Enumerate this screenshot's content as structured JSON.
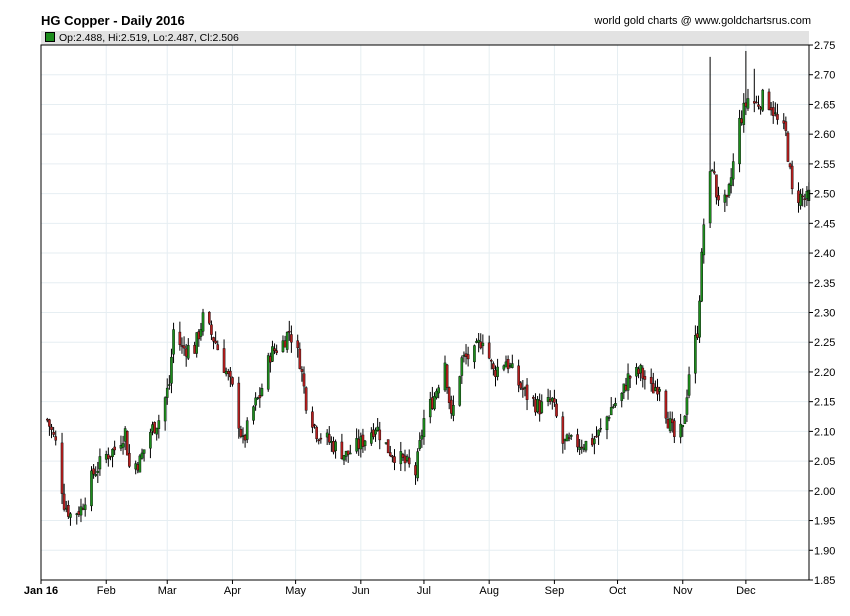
{
  "title": "HG Copper - Daily 2016",
  "credit": "world gold charts @ www.goldchartsrus.com",
  "legend": "Op:2.488, Hi:2.519, Lo:2.487, Cl:2.506",
  "colors": {
    "up": "#1c8c1c",
    "down": "#b41e1e",
    "grid": "#e6eef2",
    "wick": "#000000"
  },
  "chart_data": {
    "type": "candlestick",
    "title": "HG Copper - Daily 2016",
    "xlabel": "",
    "ylabel": "",
    "ylim": [
      1.85,
      2.75
    ],
    "yticks": [
      "1.85",
      "1.90",
      "1.95",
      "2.00",
      "2.05",
      "2.10",
      "2.15",
      "2.20",
      "2.25",
      "2.30",
      "2.35",
      "2.40",
      "2.45",
      "2.50",
      "2.55",
      "2.60",
      "2.65",
      "2.70",
      "2.75"
    ],
    "xticks": [
      "Jan 16",
      "Feb",
      "Mar",
      "Apr",
      "May",
      "Jun",
      "Jul",
      "Aug",
      "Sep",
      "Oct",
      "Nov",
      "Dec"
    ],
    "grid": true,
    "last_bar": {
      "open": 2.488,
      "high": 2.519,
      "low": 2.487,
      "close": 2.506
    },
    "close_waypoints": [
      [
        "Jan 4",
        2.12
      ],
      [
        "Jan 8",
        2.08
      ],
      [
        "Jan 12",
        1.98
      ],
      [
        "Jan 15",
        1.96
      ],
      [
        "Jan 20",
        1.97
      ],
      [
        "Jan 26",
        2.03
      ],
      [
        "Feb 1",
        2.06
      ],
      [
        "Feb 5",
        2.07
      ],
      [
        "Feb 10",
        2.1
      ],
      [
        "Feb 12",
        2.04
      ],
      [
        "Feb 17",
        2.05
      ],
      [
        "Feb 22",
        2.1
      ],
      [
        "Feb 26",
        2.12
      ],
      [
        "Mar 2",
        2.18
      ],
      [
        "Mar 4",
        2.27
      ],
      [
        "Mar 8",
        2.24
      ],
      [
        "Mar 14",
        2.24
      ],
      [
        "Mar 18",
        2.29
      ],
      [
        "Mar 24",
        2.25
      ],
      [
        "Mar 29",
        2.2
      ],
      [
        "Apr 1",
        2.17
      ],
      [
        "Apr 6",
        2.08
      ],
      [
        "Apr 11",
        2.14
      ],
      [
        "Apr 14",
        2.16
      ],
      [
        "Apr 19",
        2.23
      ],
      [
        "Apr 25",
        2.25
      ],
      [
        "Apr 28",
        2.27
      ],
      [
        "May 3",
        2.22
      ],
      [
        "May 6",
        2.15
      ],
      [
        "May 11",
        2.1
      ],
      [
        "May 18",
        2.08
      ],
      [
        "May 25",
        2.06
      ],
      [
        "Jun 1",
        2.08
      ],
      [
        "Jun 8",
        2.11
      ],
      [
        "Jun 14",
        2.07
      ],
      [
        "Jun 21",
        2.05
      ],
      [
        "Jun 27",
        2.03
      ],
      [
        "Jul 1",
        2.12
      ],
      [
        "Jul 6",
        2.16
      ],
      [
        "Jul 11",
        2.22
      ],
      [
        "Jul 14",
        2.12
      ],
      [
        "Jul 19",
        2.22
      ],
      [
        "Jul 25",
        2.23
      ],
      [
        "Jul 29",
        2.26
      ],
      [
        "Aug 3",
        2.2
      ],
      [
        "Aug 9",
        2.22
      ],
      [
        "Aug 15",
        2.18
      ],
      [
        "Aug 19",
        2.16
      ],
      [
        "Aug 25",
        2.14
      ],
      [
        "Aug 31",
        2.15
      ],
      [
        "Sep 5",
        2.08
      ],
      [
        "Sep 12",
        2.08
      ],
      [
        "Sep 18",
        2.08
      ],
      [
        "Sep 23",
        2.1
      ],
      [
        "Sep 28",
        2.14
      ],
      [
        "Oct 3",
        2.16
      ],
      [
        "Oct 6",
        2.19
      ],
      [
        "Oct 12",
        2.2
      ],
      [
        "Oct 17",
        2.17
      ],
      [
        "Oct 21",
        2.18
      ],
      [
        "Oct 25",
        2.12
      ],
      [
        "Oct 28",
        2.09
      ],
      [
        "Nov 1",
        2.1
      ],
      [
        "Nov 4",
        2.2
      ],
      [
        "Nov 8",
        2.27
      ],
      [
        "Nov 11",
        2.45
      ],
      [
        "Nov 15",
        2.55
      ],
      [
        "Nov 17",
        2.5
      ],
      [
        "Nov 22",
        2.48
      ],
      [
        "Nov 28",
        2.62
      ],
      [
        "Dec 2",
        2.66
      ],
      [
        "Dec 6",
        2.65
      ],
      [
        "Dec 9",
        2.66
      ],
      [
        "Dec 13",
        2.65
      ],
      [
        "Dec 16",
        2.62
      ],
      [
        "Dec 20",
        2.6
      ],
      [
        "Dec 23",
        2.5
      ],
      [
        "Dec 30",
        2.49
      ]
    ],
    "spikes": [
      {
        "date": "Nov 14",
        "high": 2.73
      },
      {
        "date": "Dec 1",
        "high": 2.74
      },
      {
        "date": "Dec 5",
        "high": 2.71
      }
    ]
  }
}
